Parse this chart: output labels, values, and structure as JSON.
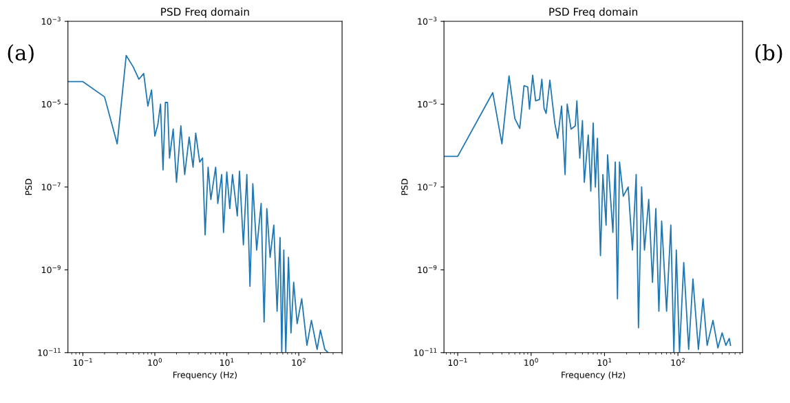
{
  "chart_data": [
    {
      "type": "line",
      "title": "PSD Freq domain",
      "xlabel": "Frequency (Hz)",
      "ylabel": "PSD",
      "annotations": [
        "(a)"
      ],
      "log": "xy",
      "grid": false,
      "legend": false,
      "xlim": [
        0.062,
        400
      ],
      "ylim": [
        1e-11,
        0.001
      ],
      "xticks": [
        {
          "value": 0.1,
          "label": "10$^{−1}$"
        },
        {
          "value": 1,
          "label": "10$^{0}$"
        },
        {
          "value": 10,
          "label": "10$^{1}$"
        },
        {
          "value": 100,
          "label": "10$^{2}$"
        }
      ],
      "yticks": [
        {
          "value": 1e-11,
          "label": "10$^{−11}$"
        },
        {
          "value": 1e-09,
          "label": "10$^{−9}$"
        },
        {
          "value": 1e-07,
          "label": "10$^{−7}$"
        },
        {
          "value": 1e-05,
          "label": "10$^{−5}$"
        },
        {
          "value": 0.001,
          "label": "10$^{−3}$"
        }
      ],
      "series": [
        {
          "color": "#1f77b4",
          "x": [
            0.0625,
            0.1,
            0.2,
            0.3,
            0.4,
            0.5,
            0.6,
            0.7,
            0.8,
            0.9,
            1.0,
            1.1,
            1.2,
            1.3,
            1.4,
            1.5,
            1.6,
            1.8,
            2.0,
            2.3,
            2.6,
            3.0,
            3.4,
            3.7,
            4.2,
            4.6,
            5.0,
            5.5,
            6.0,
            7,
            7.5,
            8.5,
            9,
            10,
            11,
            12,
            14,
            15,
            17,
            19,
            21,
            23,
            26,
            30,
            33,
            36,
            40,
            45,
            50,
            55,
            58,
            62,
            66,
            72,
            78,
            85,
            95,
            110,
            130,
            150,
            180,
            200,
            230,
            256
          ],
          "values": [
            3.5e-05,
            3.5e-05,
            1.5e-05,
            1.1e-06,
            0.00015,
            8e-05,
            4e-05,
            5.5e-05,
            9e-06,
            2.2e-05,
            1.7e-06,
            3.2e-06,
            1e-05,
            2.6e-07,
            1.1e-05,
            1.1e-05,
            5e-07,
            2.5e-06,
            1.3e-07,
            3e-06,
            2e-07,
            1.6e-06,
            3e-07,
            2e-06,
            4e-07,
            5e-07,
            7e-09,
            3e-07,
            5e-08,
            3e-07,
            4e-08,
            2e-07,
            8e-09,
            2.3e-07,
            3e-08,
            2e-07,
            2e-08,
            2.4e-07,
            4e-09,
            2e-07,
            4e-10,
            1.2e-07,
            3e-09,
            4e-08,
            5.5e-11,
            3e-08,
            2e-09,
            1.2e-08,
            1e-10,
            6e-09,
            1e-11,
            3e-09,
            1e-11,
            2e-09,
            3e-11,
            5e-10,
            5e-11,
            2e-10,
            1.5e-11,
            6e-11,
            1.2e-11,
            3.5e-11,
            1.2e-11,
            1e-11
          ]
        }
      ]
    },
    {
      "type": "line",
      "title": "PSD Freq domain",
      "xlabel": "Frequency (Hz)",
      "ylabel": "PSD",
      "annotations": [
        "(b)"
      ],
      "log": "xy",
      "grid": false,
      "legend": false,
      "xlim": [
        0.065,
        760
      ],
      "ylim": [
        1e-11,
        0.001
      ],
      "xticks": [
        {
          "value": 0.1,
          "label": "10$^{−1}$"
        },
        {
          "value": 1,
          "label": "10$^{0}$"
        },
        {
          "value": 10,
          "label": "10$^{1}$"
        },
        {
          "value": 100,
          "label": "10$^{2}$"
        }
      ],
      "yticks": [
        {
          "value": 1e-11,
          "label": "10$^{−11}$"
        },
        {
          "value": 1e-09,
          "label": "10$^{−9}$"
        },
        {
          "value": 1e-07,
          "label": "10$^{−7}$"
        },
        {
          "value": 1e-05,
          "label": "10$^{−5}$"
        },
        {
          "value": 0.001,
          "label": "10$^{−3}$"
        }
      ],
      "series": [
        {
          "color": "#1f77b4",
          "x": [
            0.066,
            0.1,
            0.3,
            0.4,
            0.5,
            0.6,
            0.7,
            0.8,
            0.9,
            0.95,
            1.05,
            1.15,
            1.3,
            1.4,
            1.5,
            1.6,
            1.8,
            2.1,
            2.3,
            2.6,
            2.9,
            3.1,
            3.5,
            4.0,
            4.2,
            4.6,
            5.0,
            5.3,
            6.0,
            6.5,
            7.0,
            7.5,
            8.0,
            8.8,
            9.5,
            10.5,
            11,
            13,
            14,
            15,
            16,
            18,
            21,
            24,
            27,
            29,
            32,
            35,
            40,
            45,
            50,
            55,
            60,
            70,
            80,
            88,
            95,
            105,
            120,
            140,
            160,
            190,
            220,
            250,
            300,
            350,
            400,
            450,
            500,
            520
          ],
          "values": [
            5.5e-07,
            5.5e-07,
            1.9e-05,
            1.1e-06,
            4.8e-05,
            4.5e-06,
            2.6e-06,
            2.8e-05,
            2.6e-05,
            7.6e-06,
            5e-05,
            1.2e-05,
            1.3e-05,
            4e-05,
            8e-06,
            6e-06,
            3.8e-05,
            3.5e-06,
            1.5e-06,
            9e-06,
            2e-07,
            1e-05,
            2.5e-06,
            3e-06,
            1.2e-05,
            5e-07,
            4e-06,
            1.3e-07,
            1.8e-06,
            8e-08,
            3.5e-06,
            1e-07,
            1.5e-06,
            2.2e-09,
            2e-07,
            1.2e-08,
            6e-07,
            8e-09,
            4e-07,
            2e-10,
            4e-07,
            6e-08,
            1e-07,
            3e-09,
            2e-07,
            4e-11,
            1e-07,
            3e-09,
            5e-08,
            5e-10,
            3e-08,
            1e-10,
            1.5e-08,
            1e-10,
            1.2e-08,
            1e-11,
            3e-09,
            1e-11,
            1.5e-09,
            1.2e-11,
            6e-10,
            1.2e-11,
            2e-10,
            1.5e-11,
            6e-11,
            1.3e-11,
            3e-11,
            1.5e-11,
            2.2e-11,
            1.5e-11
          ]
        }
      ]
    }
  ]
}
